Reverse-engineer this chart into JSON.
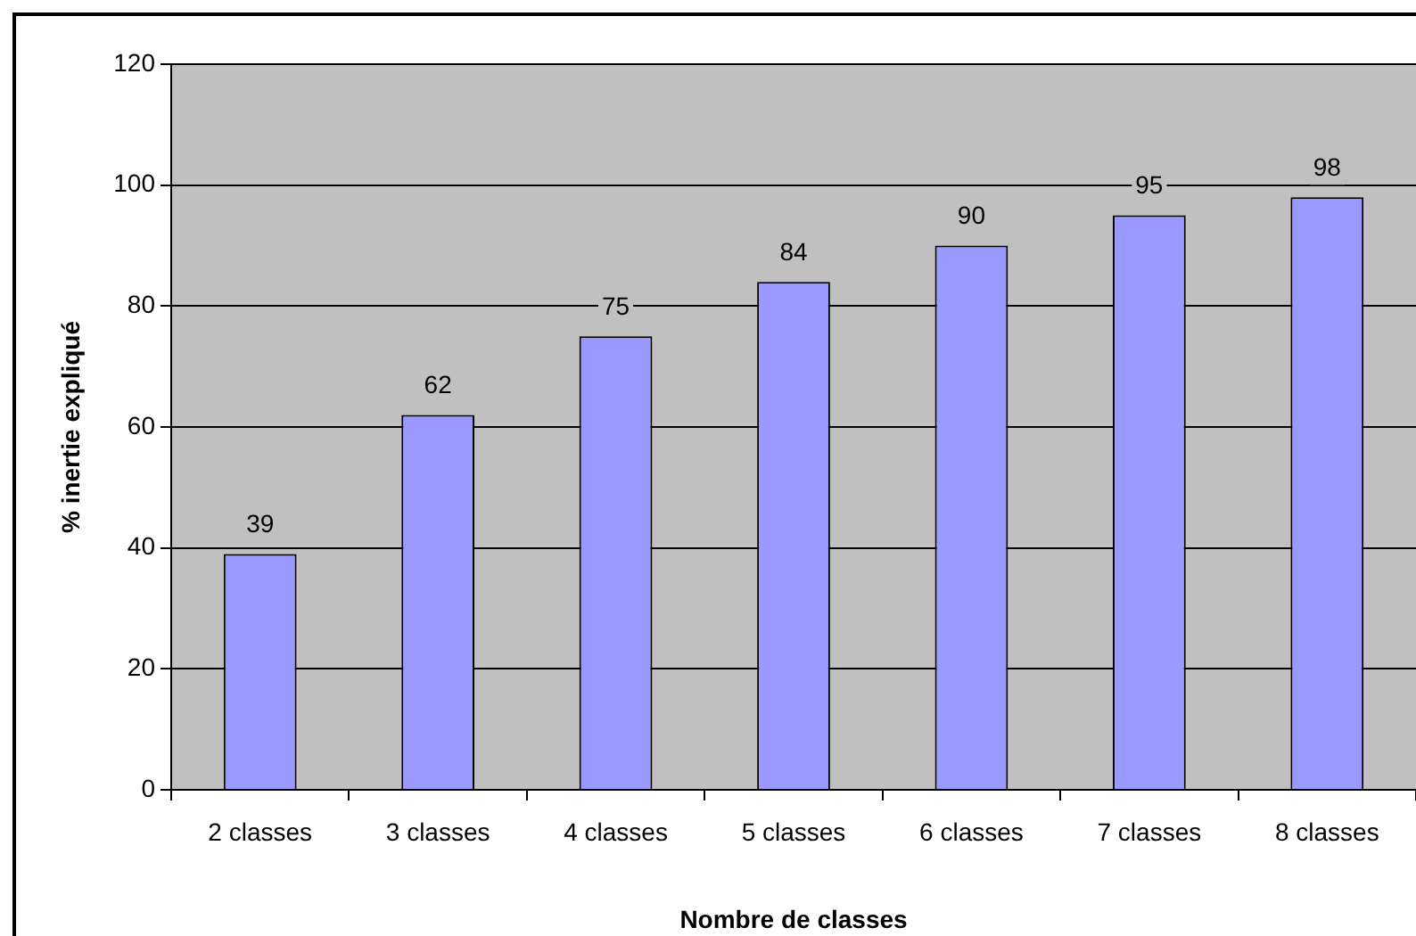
{
  "chart_data": {
    "type": "bar",
    "xlabel": "Nombre de classes",
    "ylabel": "% inertie expliqué",
    "categories": [
      "2 classes",
      "3 classes",
      "4 classes",
      "5 classes",
      "6 classes",
      "7 classes",
      "8 classes"
    ],
    "values": [
      39,
      62,
      75,
      84,
      90,
      95,
      98
    ],
    "color": "#9999ff",
    "ylim": [
      0,
      120
    ],
    "yticks": [
      0,
      20,
      40,
      60,
      80,
      100,
      120
    ],
    "grid": "y",
    "data_labels": true
  }
}
